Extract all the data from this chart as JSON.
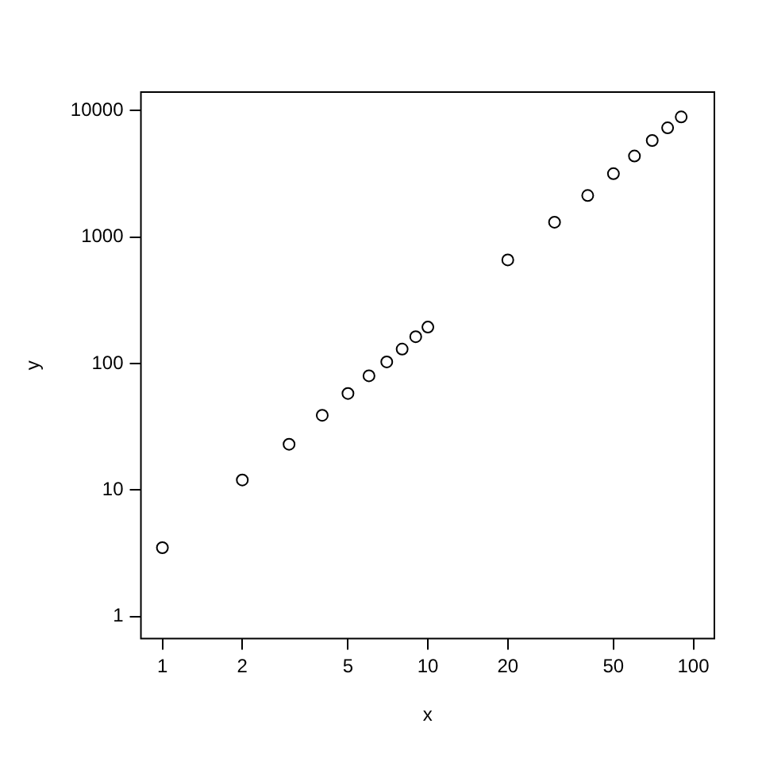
{
  "chart_data": {
    "type": "scatter",
    "xlabel": "x",
    "ylabel": "y",
    "x": [
      1,
      2,
      3,
      4,
      5,
      6,
      7,
      8,
      9,
      10,
      20,
      30,
      40,
      50,
      60,
      70,
      80,
      90
    ],
    "values": [
      3.5,
      12,
      23,
      39,
      58,
      80,
      103,
      130,
      163,
      194,
      660,
      1310,
      2130,
      3170,
      4370,
      5800,
      7300,
      8900
    ],
    "color": "#000000",
    "marker": "circle",
    "log": "xy",
    "grid": false,
    "legend": false,
    "xlim": [
      0.83,
      120
    ],
    "ylim": [
      0.67,
      14000
    ],
    "xticks": [
      1,
      2,
      5,
      10,
      20,
      50,
      100
    ],
    "yticks": [
      1,
      10,
      100,
      1000,
      10000
    ]
  }
}
